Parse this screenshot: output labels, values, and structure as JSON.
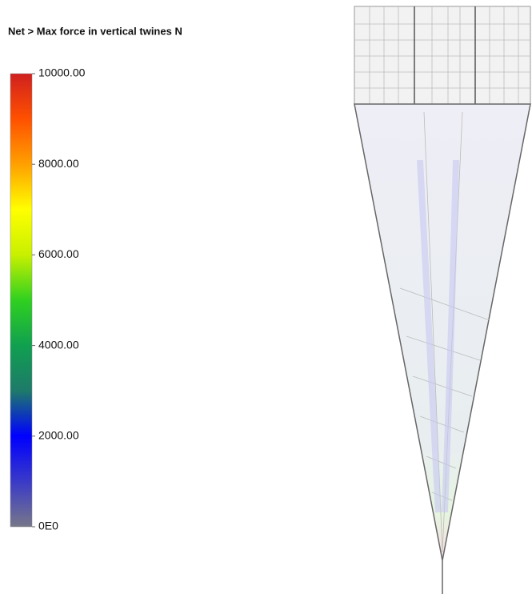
{
  "chart_data": {
    "type": "colorbar",
    "title": "Net > Max force in vertical twines N",
    "ylim": [
      0,
      10000
    ],
    "yticks": [
      {
        "value": 0,
        "label": "0E0"
      },
      {
        "value": 2000,
        "label": "2000.00"
      },
      {
        "value": 4000,
        "label": "4000.00"
      },
      {
        "value": 6000,
        "label": "6000.00"
      },
      {
        "value": 8000,
        "label": "8000.00"
      },
      {
        "value": 10000,
        "label": "10000.00"
      }
    ],
    "colormap": [
      "#77778a",
      "#3a3ac8",
      "#0000ff",
      "#1e7a6a",
      "#10a050",
      "#30d020",
      "#c8f000",
      "#ffff00",
      "#ffa000",
      "#ff5000",
      "#d02020"
    ]
  }
}
